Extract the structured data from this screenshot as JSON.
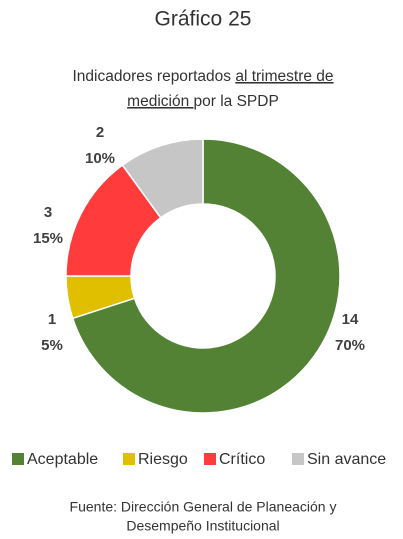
{
  "chart_data": {
    "type": "donut",
    "title": "Gráfico 25",
    "subtitle_segments": [
      "Indicadores reportados ",
      "al trimestre de",
      "medición ",
      "por la SPDP"
    ],
    "categories": [
      "Aceptable",
      "Riesgo",
      "Crítico",
      "Sin avance"
    ],
    "values": [
      70,
      5,
      15,
      10
    ],
    "value_labels": [
      "70%",
      "5%",
      "15%",
      "10%"
    ],
    "counts": [
      14,
      1,
      3,
      2
    ],
    "colors": [
      "#548235",
      "#e0bf00",
      "#ff3b3b",
      "#c6c6c6"
    ],
    "legend": "bottom",
    "source": [
      "Fuente: Dirección General de Planeación y",
      "Desempeño Institucional"
    ]
  }
}
